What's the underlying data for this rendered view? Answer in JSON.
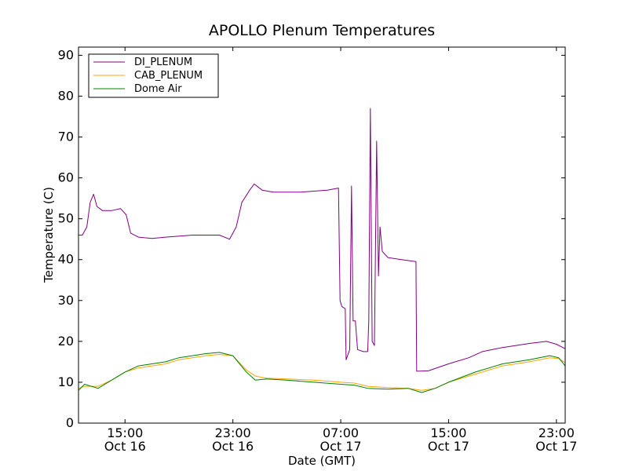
{
  "chart_data": {
    "type": "line",
    "title": "APOLLO Plenum Temperatures",
    "xlabel": "Date (GMT)",
    "ylabel": "Temperature (C)",
    "xlim": [
      "Oct 16 11:33",
      "Oct 17 23:39"
    ],
    "ylim": [
      0,
      92
    ],
    "yticks": [
      0,
      10,
      20,
      30,
      40,
      50,
      60,
      70,
      80,
      90
    ],
    "xticks": [
      {
        "time": "Oct 16 15:00",
        "line1": "15:00",
        "line2": "Oct 16"
      },
      {
        "time": "Oct 16 23:00",
        "line1": "23:00",
        "line2": "Oct 16"
      },
      {
        "time": "Oct 17 07:00",
        "line1": "07:00",
        "line2": "Oct 17"
      },
      {
        "time": "Oct 17 15:00",
        "line1": "15:00",
        "line2": "Oct 17"
      },
      {
        "time": "Oct 17 23:00",
        "line1": "23:00",
        "line2": "Oct 17"
      }
    ],
    "legend_position": "top-left",
    "grid": false,
    "series": [
      {
        "name": "DI_PLENUM",
        "color": "#800080",
        "points": [
          [
            "Oct 16 11:33",
            46
          ],
          [
            "Oct 16 11:50",
            46
          ],
          [
            "Oct 16 12:10",
            48
          ],
          [
            "Oct 16 12:25",
            54
          ],
          [
            "Oct 16 12:40",
            56
          ],
          [
            "Oct 16 12:55",
            53
          ],
          [
            "Oct 16 13:20",
            52
          ],
          [
            "Oct 16 14:00",
            52
          ],
          [
            "Oct 16 14:40",
            52.5
          ],
          [
            "Oct 16 15:05",
            51
          ],
          [
            "Oct 16 15:25",
            46.5
          ],
          [
            "Oct 16 16:00",
            45.5
          ],
          [
            "Oct 16 17:00",
            45.2
          ],
          [
            "Oct 16 18:00",
            45.5
          ],
          [
            "Oct 16 20:00",
            46
          ],
          [
            "Oct 16 22:00",
            46
          ],
          [
            "Oct 16 22:45",
            45
          ],
          [
            "Oct 16 23:15",
            48
          ],
          [
            "Oct 16 23:40",
            54
          ],
          [
            "Oct 17 00:15",
            57
          ],
          [
            "Oct 17 00:35",
            58.5
          ],
          [
            "Oct 17 01:10",
            57
          ],
          [
            "Oct 17 02:00",
            56.5
          ],
          [
            "Oct 17 04:00",
            56.5
          ],
          [
            "Oct 17 06:00",
            57
          ],
          [
            "Oct 17 06:50",
            57.5
          ],
          [
            "Oct 17 06:57",
            30
          ],
          [
            "Oct 17 07:05",
            28.5
          ],
          [
            "Oct 17 07:20",
            28
          ],
          [
            "Oct 17 07:24",
            15.5
          ],
          [
            "Oct 17 07:40",
            18
          ],
          [
            "Oct 17 07:48",
            58
          ],
          [
            "Oct 17 07:55",
            25
          ],
          [
            "Oct 17 08:05",
            25
          ],
          [
            "Oct 17 08:15",
            18
          ],
          [
            "Oct 17 08:40",
            17.5
          ],
          [
            "Oct 17 09:00",
            17.5
          ],
          [
            "Oct 17 09:05",
            25
          ],
          [
            "Oct 17 09:12",
            77
          ],
          [
            "Oct 17 09:20",
            20
          ],
          [
            "Oct 17 09:30",
            19
          ],
          [
            "Oct 17 09:40",
            69
          ],
          [
            "Oct 17 09:48",
            36
          ],
          [
            "Oct 17 09:55",
            48
          ],
          [
            "Oct 17 10:05",
            42
          ],
          [
            "Oct 17 10:30",
            40.5
          ],
          [
            "Oct 17 11:30",
            40
          ],
          [
            "Oct 17 12:35",
            39.5
          ],
          [
            "Oct 17 12:38",
            12.7
          ],
          [
            "Oct 17 13:30",
            12.8
          ],
          [
            "Oct 17 15:00",
            14.5
          ],
          [
            "Oct 17 16:30",
            16
          ],
          [
            "Oct 17 17:30",
            17.5
          ],
          [
            "Oct 17 19:00",
            18.5
          ],
          [
            "Oct 17 21:00",
            19.5
          ],
          [
            "Oct 17 22:15",
            20
          ],
          [
            "Oct 17 23:00",
            19.3
          ],
          [
            "Oct 17 23:39",
            18.2
          ]
        ]
      },
      {
        "name": "CAB_PLENUM",
        "color": "#ffa500",
        "points": [
          [
            "Oct 16 11:33",
            8.5
          ],
          [
            "Oct 16 12:00",
            9
          ],
          [
            "Oct 16 13:00",
            9
          ],
          [
            "Oct 16 14:00",
            10.5
          ],
          [
            "Oct 16 15:00",
            12.5
          ],
          [
            "Oct 16 16:00",
            13.5
          ],
          [
            "Oct 16 17:00",
            14
          ],
          [
            "Oct 16 18:00",
            14.5
          ],
          [
            "Oct 16 19:00",
            15.5
          ],
          [
            "Oct 16 20:00",
            16
          ],
          [
            "Oct 16 21:00",
            16.5
          ],
          [
            "Oct 16 22:00",
            16.8
          ],
          [
            "Oct 16 23:00",
            16.5
          ],
          [
            "Oct 17 00:00",
            13
          ],
          [
            "Oct 17 00:40",
            11.5
          ],
          [
            "Oct 17 01:30",
            11
          ],
          [
            "Oct 17 03:00",
            10.8
          ],
          [
            "Oct 17 05:00",
            10.5
          ],
          [
            "Oct 17 07:00",
            10
          ],
          [
            "Oct 17 08:00",
            9.8
          ],
          [
            "Oct 17 09:00",
            9
          ],
          [
            "Oct 17 10:30",
            8.7
          ],
          [
            "Oct 17 12:00",
            8.5
          ],
          [
            "Oct 17 13:00",
            8
          ],
          [
            "Oct 17 14:00",
            8.5
          ],
          [
            "Oct 17 15:00",
            10
          ],
          [
            "Oct 17 17:00",
            12
          ],
          [
            "Oct 17 19:00",
            14
          ],
          [
            "Oct 17 21:00",
            15
          ],
          [
            "Oct 17 22:30",
            16
          ],
          [
            "Oct 17 23:10",
            15.8
          ],
          [
            "Oct 17 23:39",
            14.8
          ]
        ]
      },
      {
        "name": "Dome Air",
        "color": "#008000",
        "points": [
          [
            "Oct 16 11:33",
            8
          ],
          [
            "Oct 16 12:00",
            9.5
          ],
          [
            "Oct 16 13:00",
            8.5
          ],
          [
            "Oct 16 14:00",
            10.5
          ],
          [
            "Oct 16 15:00",
            12.5
          ],
          [
            "Oct 16 16:00",
            14
          ],
          [
            "Oct 16 17:00",
            14.5
          ],
          [
            "Oct 16 18:00",
            15
          ],
          [
            "Oct 16 19:00",
            16
          ],
          [
            "Oct 16 20:00",
            16.5
          ],
          [
            "Oct 16 21:00",
            17
          ],
          [
            "Oct 16 22:00",
            17.3
          ],
          [
            "Oct 16 23:00",
            16.5
          ],
          [
            "Oct 17 00:00",
            12.5
          ],
          [
            "Oct 17 00:40",
            10.5
          ],
          [
            "Oct 17 01:30",
            10.8
          ],
          [
            "Oct 17 03:00",
            10.5
          ],
          [
            "Oct 17 05:00",
            10
          ],
          [
            "Oct 17 07:00",
            9.5
          ],
          [
            "Oct 17 08:00",
            9.3
          ],
          [
            "Oct 17 09:00",
            8.5
          ],
          [
            "Oct 17 10:30",
            8.3
          ],
          [
            "Oct 17 12:00",
            8.5
          ],
          [
            "Oct 17 13:00",
            7.5
          ],
          [
            "Oct 17 14:00",
            8.5
          ],
          [
            "Oct 17 15:00",
            10
          ],
          [
            "Oct 17 17:00",
            12.5
          ],
          [
            "Oct 17 19:00",
            14.5
          ],
          [
            "Oct 17 21:00",
            15.5
          ],
          [
            "Oct 17 22:30",
            16.5
          ],
          [
            "Oct 17 23:10",
            16
          ],
          [
            "Oct 17 23:39",
            14
          ]
        ]
      }
    ]
  }
}
